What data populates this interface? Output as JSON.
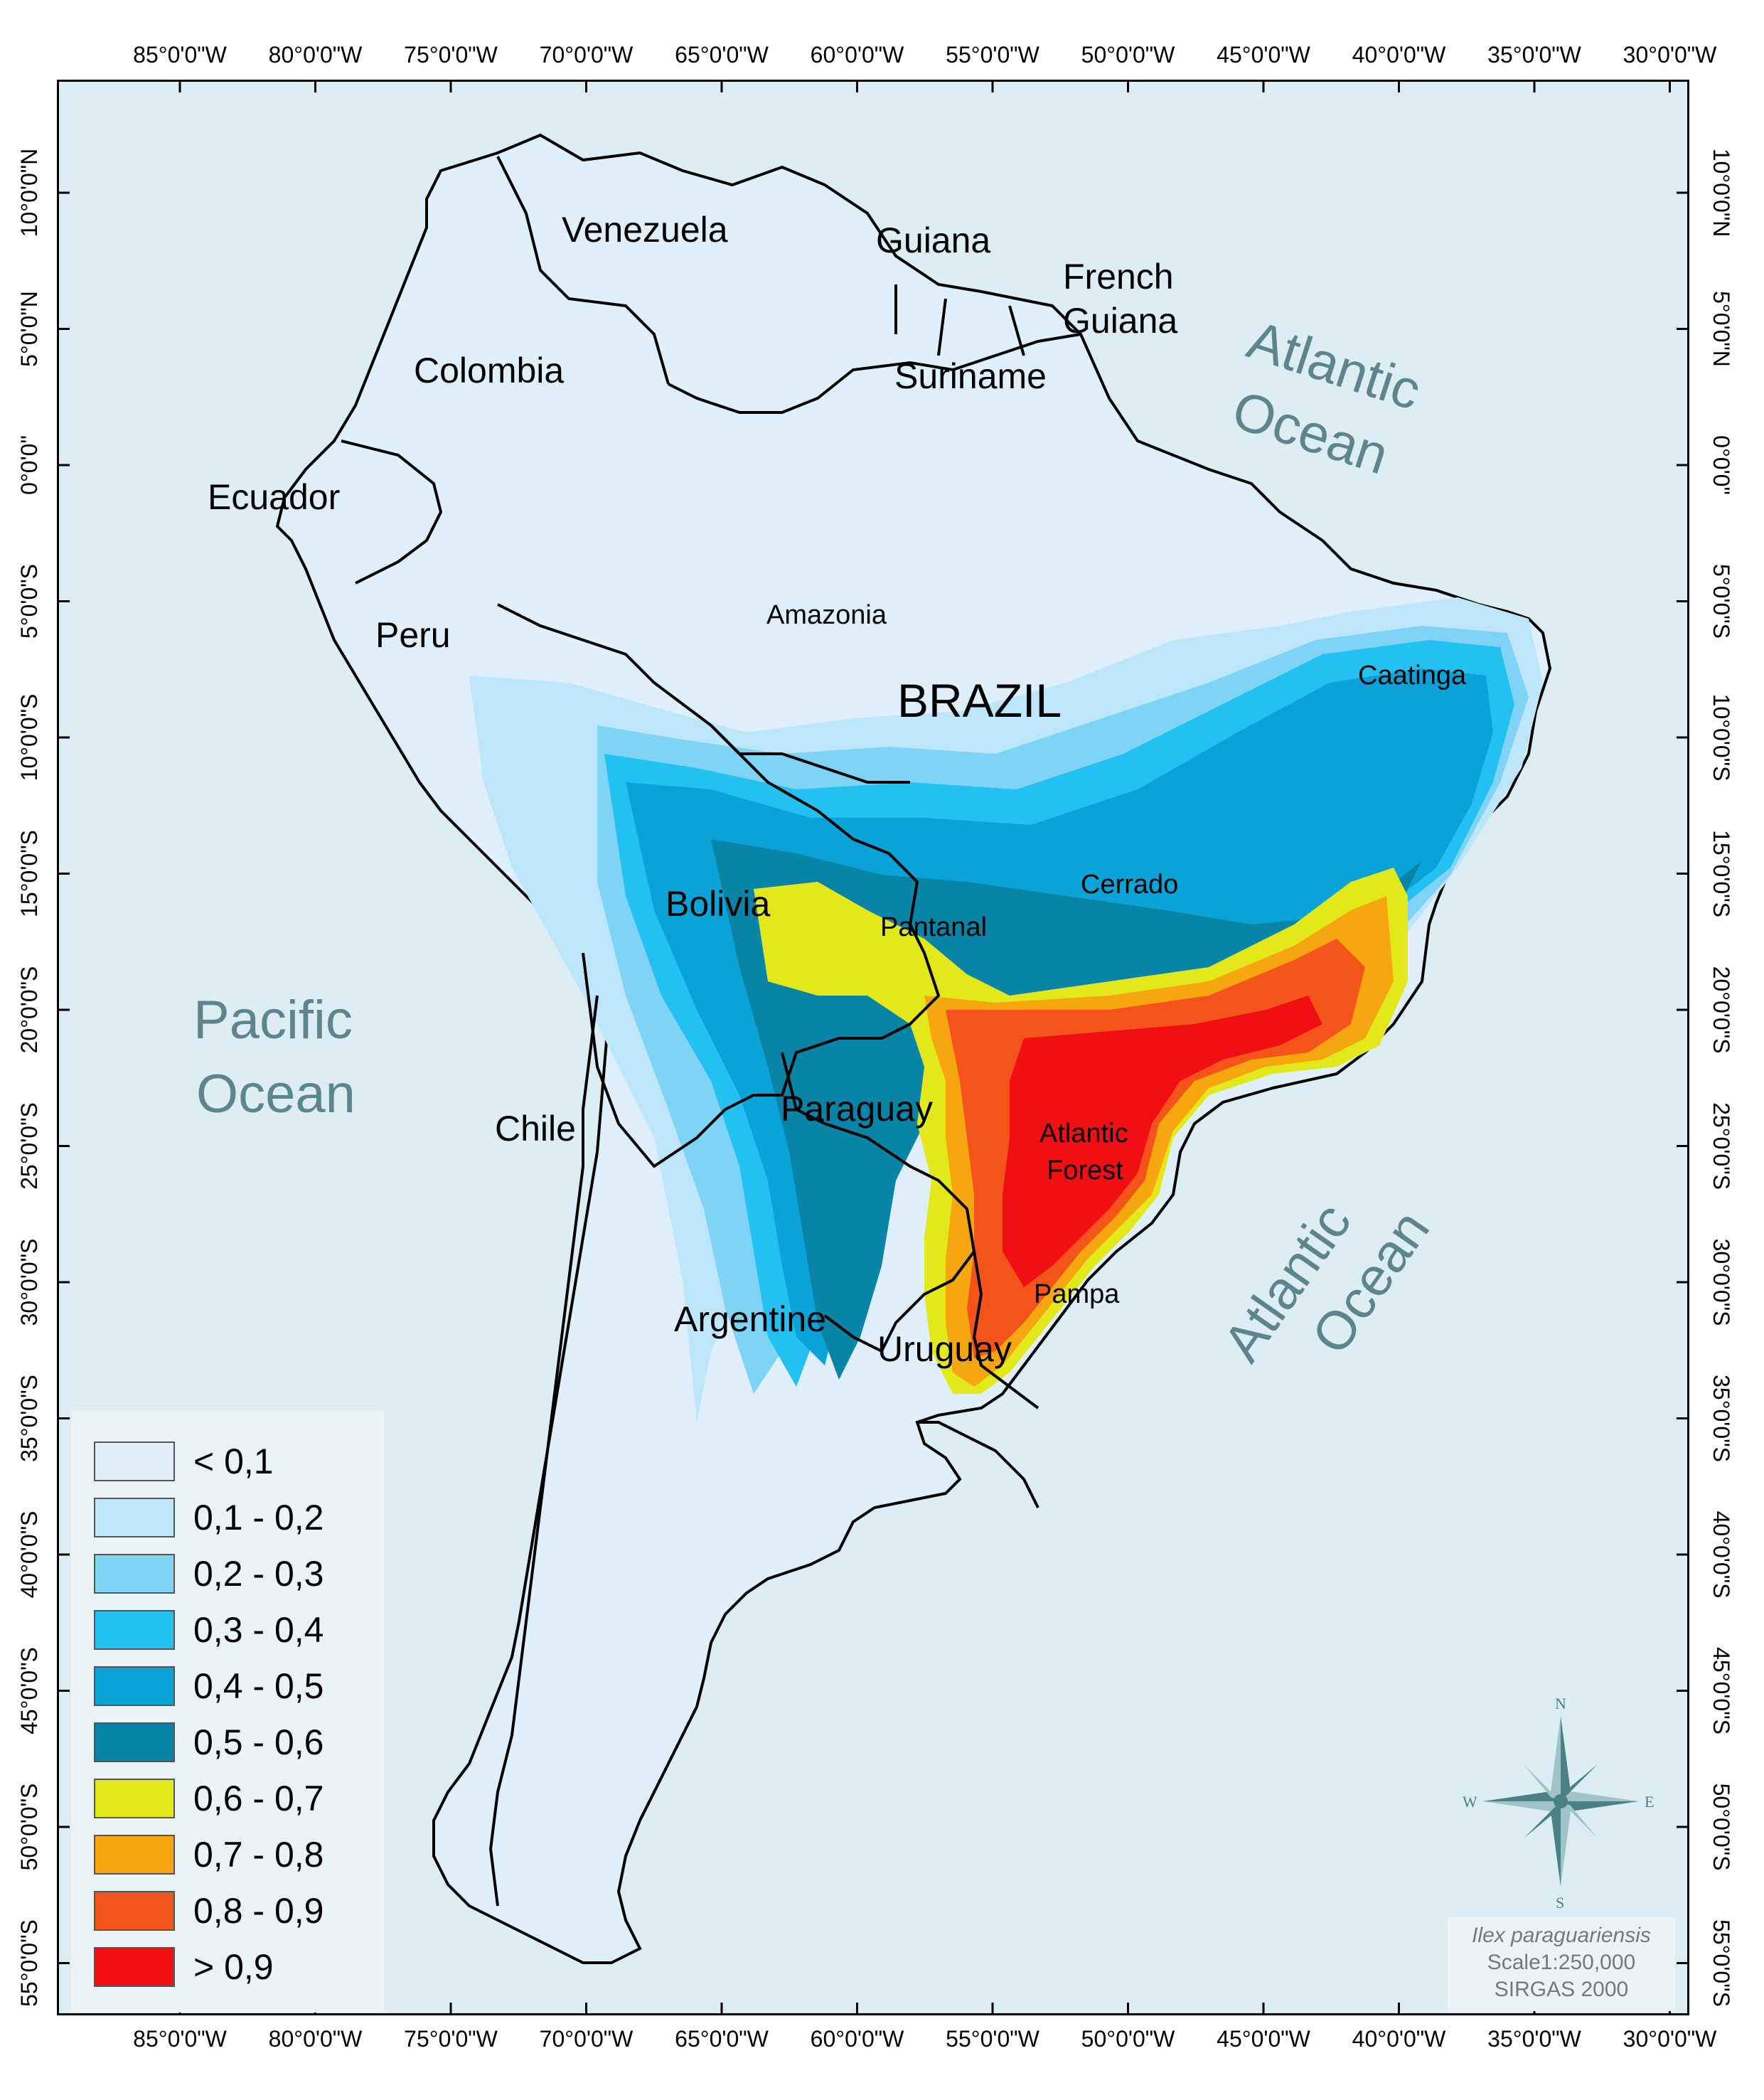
{
  "map": {
    "top_longitude_labels": [
      "85°0'0\"W",
      "80°0'0\"W",
      "75°0'0\"W",
      "70°0'0\"W",
      "65°0'0\"W",
      "60°0'0\"W",
      "55°0'0\"W",
      "50°0'0\"W",
      "45°0'0\"W",
      "40°0'0\"W",
      "35°0'0\"W",
      "30°0'0\"W"
    ],
    "bottom_longitude_labels": [
      "85°0'0\"W",
      "80°0'0\"W",
      "75°0'0\"W",
      "70°0'0\"W",
      "65°0'0\"W",
      "60°0'0\"W",
      "55°0'0\"W",
      "50°0'0\"W",
      "45°0'0\"W",
      "40°0'0\"W",
      "35°0'0\"W",
      "30°0'0\"W"
    ],
    "left_latitude_labels": [
      "10°0'0\"N",
      "5°0'0\"N",
      "0°0'0\"",
      "5°0'0\"S",
      "10°0'0\"S",
      "15°0'0\"S",
      "20°0'0\"S",
      "25°0'0\"S",
      "30°0'0\"S",
      "35°0'0\"S",
      "40°0'0\"S",
      "45°0'0\"S",
      "50°0'0\"S",
      "55°0'0\"S"
    ],
    "right_latitude_labels": [
      "10°0'0\"N",
      "5°0'0\"N",
      "0°0'0\"",
      "5°0'0\"S",
      "10°0'0\"S",
      "15°0'0\"S",
      "20°0'0\"S",
      "25°0'0\"S",
      "30°0'0\"S",
      "35°0'0\"S",
      "40°0'0\"S",
      "45°0'0\"S",
      "50°0'0\"S",
      "55°0'0\"S"
    ],
    "labels": {
      "venezuela": "Venezuela",
      "guiana": "Guiana",
      "french_guiana_1": "French",
      "french_guiana_2": "Guiana",
      "suriname": "Suriname",
      "colombia": "Colombia",
      "ecuador": "Ecuador",
      "peru": "Peru",
      "amazonia": "Amazonia",
      "brazil": "BRAZIL",
      "caatinga": "Caatinga",
      "bolivia": "Bolivia",
      "cerrado": "Cerrado",
      "pantanal": "Pantanal",
      "paraguay": "Paraguay",
      "atlantic_forest_1": "Atlantic",
      "atlantic_forest_2": "Forest",
      "chile": "Chile",
      "argentine": "Argentine",
      "pampa": "Pampa",
      "uruguay": "Uruguay",
      "pacific_1": "Pacific",
      "pacific_2": "Ocean",
      "atlantic_n_1": "Atlantic",
      "atlantic_n_2": "Ocean",
      "atlantic_s_1": "Atlantic",
      "atlantic_s_2": "Ocean"
    },
    "compass": {
      "n": "N",
      "s": "S",
      "e": "E",
      "w": "W",
      "icon": "compass-rose-icon"
    },
    "info": {
      "species": "Ilex paraguariensis",
      "scale": "Scale1:250,000",
      "datum": "SIRGAS 2000"
    },
    "colors": {
      "ocean": "#dcedf3",
      "land_lt_01": "#dff0fc",
      "c01_02": "#bde6fa",
      "c02_03": "#7fd3f5",
      "c03_04": "#22c1f2",
      "c04_05": "#0aa3d8",
      "c05_06": "#0784a6",
      "c06_07": "#e3e81a",
      "c07_08": "#f6a60f",
      "c08_09": "#f4541a",
      "c09_10": "#f20f14"
    }
  },
  "legend": {
    "items": [
      {
        "label": "< 0,1",
        "color": "#dff0fc"
      },
      {
        "label": "0,1 - 0,2",
        "color": "#bde6fa"
      },
      {
        "label": "0,2 - 0,3",
        "color": "#7fd3f5"
      },
      {
        "label": "0,3 - 0,4",
        "color": "#22c1f2"
      },
      {
        "label": "0,4 - 0,5",
        "color": "#0aa3d8"
      },
      {
        "label": "0,5 - 0,6",
        "color": "#0784a6"
      },
      {
        "label": "0,6 - 0,7",
        "color": "#e3e81a"
      },
      {
        "label": "0,7 - 0,8",
        "color": "#f6a60f"
      },
      {
        "label": "0,8 - 0,9",
        "color": "#f4541a"
      },
      {
        "label": "> 0,9",
        "color": "#f20f14"
      }
    ]
  }
}
